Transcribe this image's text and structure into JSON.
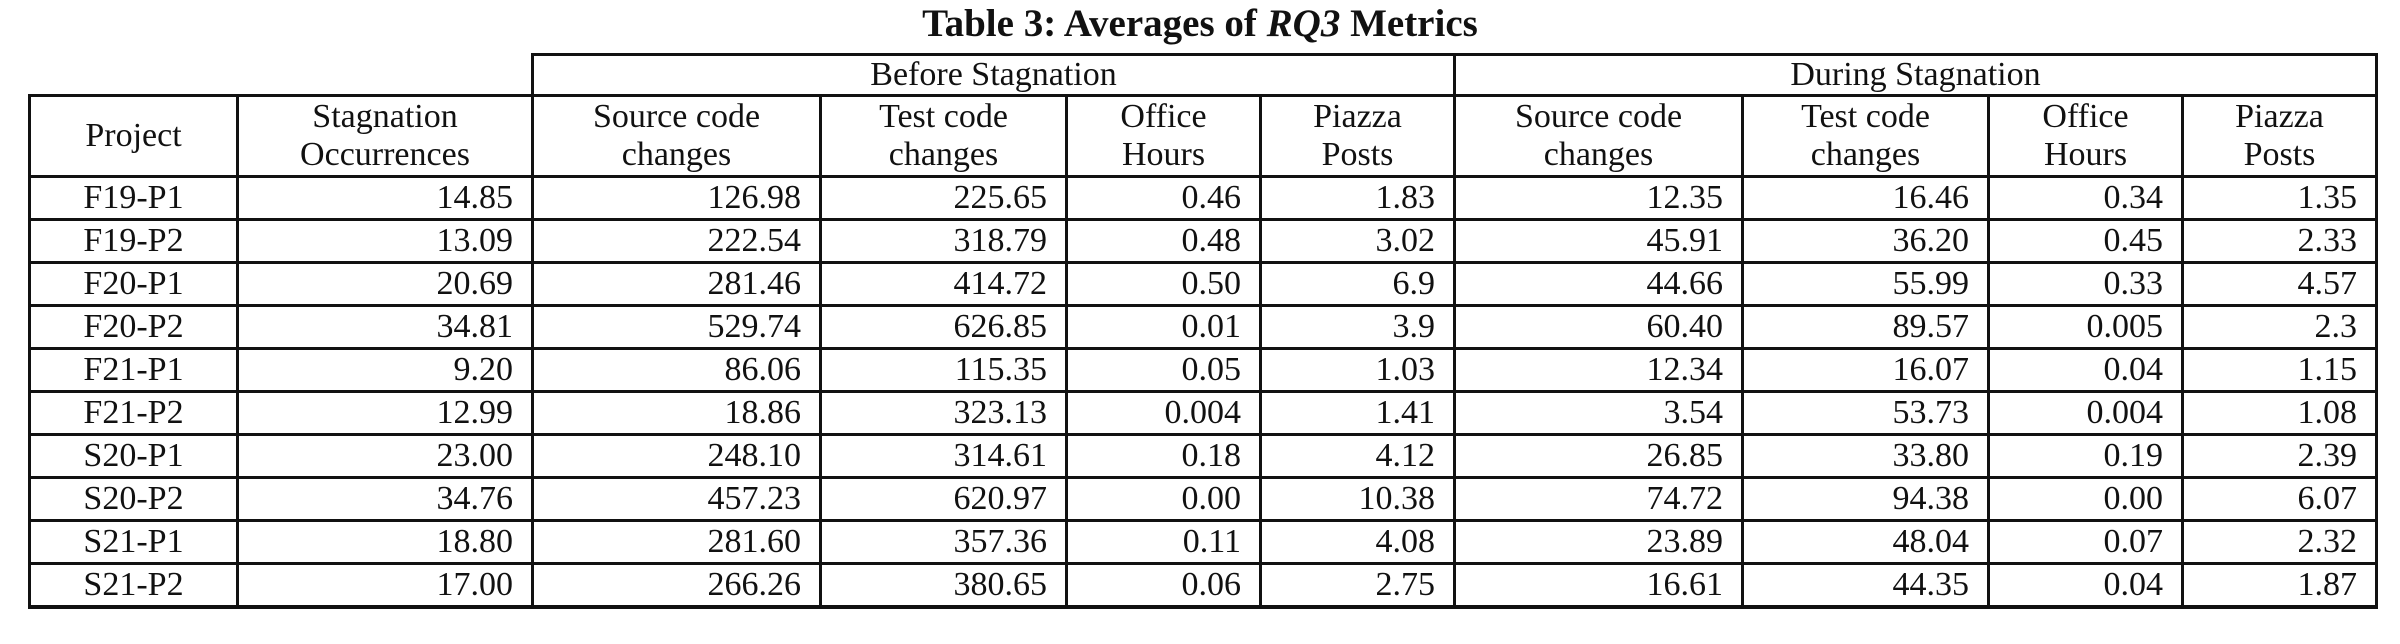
{
  "caption": {
    "prefix": "Table 3: Averages of ",
    "emph": "RQ3",
    "suffix": " Metrics"
  },
  "table": {
    "group_headers": {
      "before": "Before Stagnation",
      "during": "During Stagnation"
    },
    "columns": {
      "project": "Project",
      "stagnation": [
        "Stagnation",
        "Occurrences"
      ],
      "before": {
        "source": [
          "Source code",
          "changes"
        ],
        "test": [
          "Test code",
          "changes"
        ],
        "office": [
          "Office",
          "Hours"
        ],
        "piazza": [
          "Piazza",
          "Posts"
        ]
      },
      "during": {
        "source": [
          "Source code",
          "changes"
        ],
        "test": [
          "Test code",
          "changes"
        ],
        "office": [
          "Office",
          "Hours"
        ],
        "piazza": [
          "Piazza",
          "Posts"
        ]
      }
    },
    "rows": [
      [
        "F19-P1",
        "14.85",
        "126.98",
        "225.65",
        "0.46",
        "1.83",
        "12.35",
        "16.46",
        "0.34",
        "1.35"
      ],
      [
        "F19-P2",
        "13.09",
        "222.54",
        "318.79",
        "0.48",
        "3.02",
        "45.91",
        "36.20",
        "0.45",
        "2.33"
      ],
      [
        "F20-P1",
        "20.69",
        "281.46",
        "414.72",
        "0.50",
        "6.9",
        "44.66",
        "55.99",
        "0.33",
        "4.57"
      ],
      [
        "F20-P2",
        "34.81",
        "529.74",
        "626.85",
        "0.01",
        "3.9",
        "60.40",
        "89.57",
        "0.005",
        "2.3"
      ],
      [
        "F21-P1",
        "9.20",
        "86.06",
        "115.35",
        "0.05",
        "1.03",
        "12.34",
        "16.07",
        "0.04",
        "1.15"
      ],
      [
        "F21-P2",
        "12.99",
        "18.86",
        "323.13",
        "0.004",
        "1.41",
        "3.54",
        "53.73",
        "0.004",
        "1.08"
      ],
      [
        "S20-P1",
        "23.00",
        "248.10",
        "314.61",
        "0.18",
        "4.12",
        "26.85",
        "33.80",
        "0.19",
        "2.39"
      ],
      [
        "S20-P2",
        "34.76",
        "457.23",
        "620.97",
        "0.00",
        "10.38",
        "74.72",
        "94.38",
        "0.00",
        "6.07"
      ],
      [
        "S21-P1",
        "18.80",
        "281.60",
        "357.36",
        "0.11",
        "4.08",
        "23.89",
        "48.04",
        "0.07",
        "2.32"
      ],
      [
        "S21-P2",
        "17.00",
        "266.26",
        "380.65",
        "0.06",
        "2.75",
        "16.61",
        "44.35",
        "0.04",
        "1.87"
      ]
    ]
  }
}
